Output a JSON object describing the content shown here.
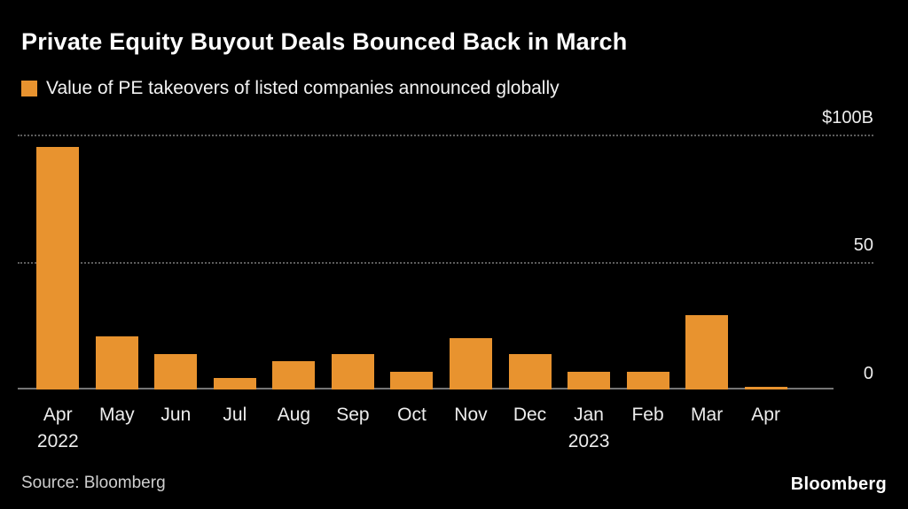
{
  "header": {
    "title": "Private Equity Buyout Deals Bounced Back in March",
    "legend_label": "Value of PE takeovers of listed companies announced globally"
  },
  "chart_data": {
    "type": "bar",
    "title": "Private Equity Buyout Deals Bounced Back in March",
    "legend": "Value of PE takeovers of listed companies announced globally",
    "categories": [
      "Apr",
      "May",
      "Jun",
      "Jul",
      "Aug",
      "Sep",
      "Oct",
      "Nov",
      "Dec",
      "Jan",
      "Feb",
      "Mar",
      "Apr"
    ],
    "category_sublabels": [
      "2022",
      "",
      "",
      "",
      "",
      "",
      "",
      "",
      "",
      "2023",
      "",
      "",
      ""
    ],
    "values": [
      95,
      21,
      14,
      4.5,
      11,
      14,
      7,
      20,
      14,
      7,
      7,
      29,
      1
    ],
    "unit": "$B",
    "ylim": [
      0,
      100
    ],
    "y_ticks": [
      "$100B",
      "50",
      "0"
    ],
    "y_tick_values": [
      100,
      50,
      0
    ],
    "grid": "horizontal dotted at 50 and 100, solid baseline at 0",
    "legend_position": "top-left",
    "bar_color": "#E8932F",
    "background_color": "#000000"
  },
  "footer": {
    "source": "Source: Bloomberg",
    "logo": "Bloomberg"
  }
}
